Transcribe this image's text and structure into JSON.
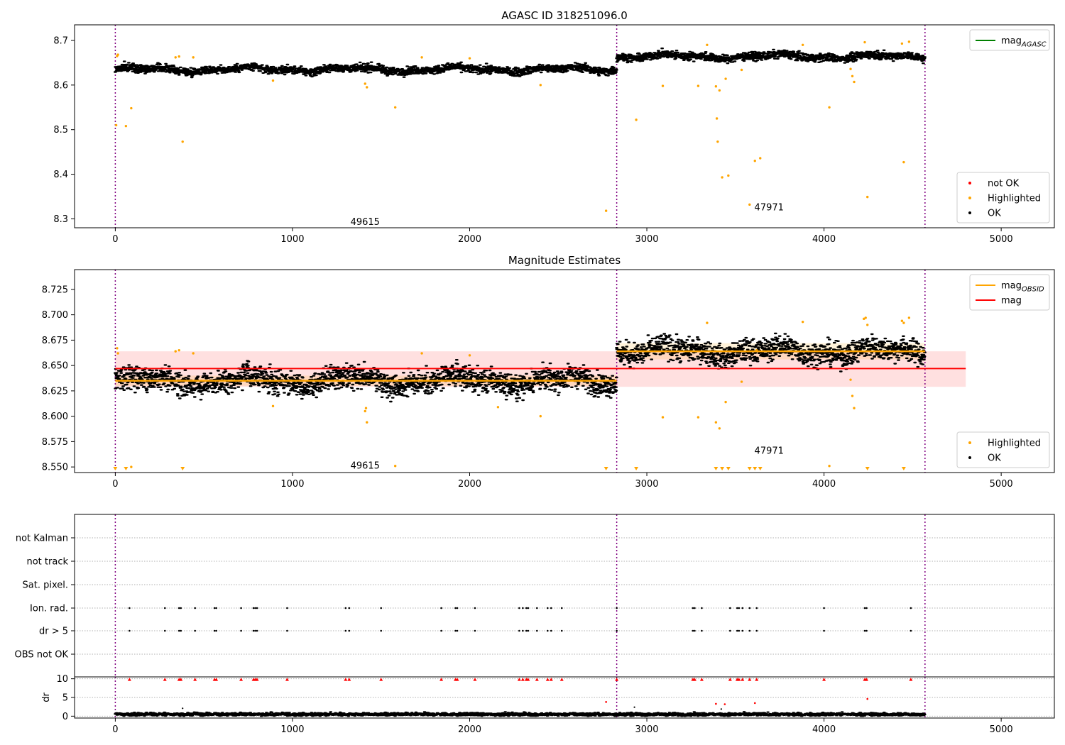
{
  "chart_data": [
    {
      "type": "scatter",
      "title": "AGASC ID 318251096.0",
      "xlim": [
        -230,
        5300
      ],
      "ylim": [
        8.28,
        8.735
      ],
      "xticks": [
        0,
        1000,
        2000,
        3000,
        4000,
        5000
      ],
      "yticks": [
        8.3,
        8.4,
        8.5,
        8.6,
        8.7
      ],
      "ytick_decimals": 1,
      "obs_boundaries": [
        0,
        2830,
        4570
      ],
      "obs_labels": [
        {
          "text": "49615",
          "x": 1410,
          "y": 8.293
        },
        {
          "text": "47971",
          "x": 3690,
          "y": 8.325
        }
      ],
      "ok_segments": [
        {
          "x0": 0,
          "x1": 2830,
          "base": 8.635,
          "amp": 0.01
        },
        {
          "x0": 2830,
          "x1": 4570,
          "base": 8.664,
          "amp": 0.01
        }
      ],
      "lines": [],
      "highlighted_points": [
        [
          5,
          8.51
        ],
        [
          10,
          8.665
        ],
        [
          15,
          8.668
        ],
        [
          60,
          8.508
        ],
        [
          90,
          8.548
        ],
        [
          340,
          8.662
        ],
        [
          360,
          8.664
        ],
        [
          380,
          8.473
        ],
        [
          440,
          8.662
        ],
        [
          890,
          8.61
        ],
        [
          1410,
          8.603
        ],
        [
          1420,
          8.595
        ],
        [
          1580,
          8.55
        ],
        [
          1730,
          8.662
        ],
        [
          2000,
          8.66
        ],
        [
          2400,
          8.6
        ],
        [
          2770,
          8.318
        ],
        [
          2940,
          8.522
        ],
        [
          3090,
          8.598
        ],
        [
          3290,
          8.598
        ],
        [
          3340,
          8.69
        ],
        [
          3390,
          8.597
        ],
        [
          3395,
          8.525
        ],
        [
          3400,
          8.473
        ],
        [
          3410,
          8.588
        ],
        [
          3425,
          8.393
        ],
        [
          3445,
          8.614
        ],
        [
          3460,
          8.397
        ],
        [
          3535,
          8.634
        ],
        [
          3580,
          8.332
        ],
        [
          3610,
          8.43
        ],
        [
          3640,
          8.436
        ],
        [
          3880,
          8.69
        ],
        [
          4030,
          8.55
        ],
        [
          4150,
          8.636
        ],
        [
          4160,
          8.62
        ],
        [
          4170,
          8.607
        ],
        [
          4230,
          8.696
        ],
        [
          4245,
          8.349
        ],
        [
          4440,
          8.693
        ],
        [
          4450,
          8.427
        ],
        [
          4480,
          8.697
        ]
      ],
      "legends": [
        {
          "placement": "top-right",
          "entries": [
            {
              "label": "mag",
              "sub": "AGASC",
              "marker": "line",
              "color": "#008000"
            }
          ]
        },
        {
          "placement": "bottom-right",
          "entries": [
            {
              "label": "not OK",
              "marker": "dot",
              "color": "#ff0000"
            },
            {
              "label": "Highlighted",
              "marker": "dot",
              "color": "#ffa500"
            },
            {
              "label": "OK",
              "marker": "dot",
              "color": "#000000"
            }
          ]
        }
      ]
    },
    {
      "type": "scatter",
      "title": "Magnitude Estimates",
      "xlim": [
        -230,
        5300
      ],
      "ylim": [
        8.5445,
        8.7445
      ],
      "xticks": [
        0,
        1000,
        2000,
        3000,
        4000,
        5000
      ],
      "yticks": [
        8.55,
        8.575,
        8.6,
        8.625,
        8.65,
        8.675,
        8.7,
        8.725
      ],
      "ytick_decimals": 3,
      "obs_boundaries": [
        0,
        2830,
        4570
      ],
      "obs_labels": [
        {
          "text": "49615",
          "x": 1410,
          "y": 8.551
        },
        {
          "text": "47971",
          "x": 3690,
          "y": 8.566
        }
      ],
      "ok_segments": [
        {
          "x0": 0,
          "x1": 2830,
          "base": 8.635,
          "amp": 0.013
        },
        {
          "x0": 2830,
          "x1": 4570,
          "base": 8.664,
          "amp": 0.013
        }
      ],
      "bands": [
        {
          "x0": 0,
          "x1": 4800,
          "y0": 8.629,
          "y1": 8.664,
          "color": "#ff0000",
          "opacity": 0.12
        },
        {
          "x0": 0,
          "x1": 2830,
          "y0": 8.63,
          "y1": 8.64,
          "color": "#ffa500",
          "opacity": 0.15
        },
        {
          "x0": 2830,
          "x1": 4570,
          "y0": 8.656,
          "y1": 8.672,
          "color": "#ffa500",
          "opacity": 0.15
        }
      ],
      "lines": [
        {
          "x0": 0,
          "x1": 2830,
          "y": 8.635,
          "color": "#ffa500",
          "width": 2.5
        },
        {
          "x0": 2830,
          "x1": 4570,
          "y": 8.664,
          "color": "#ffa500",
          "width": 2.5
        },
        {
          "x0": 0,
          "x1": 4800,
          "y": 8.647,
          "color": "#ff0000",
          "width": 1.8
        }
      ],
      "highlighted_points": [
        [
          10,
          8.667
        ],
        [
          15,
          8.662
        ],
        [
          90,
          8.55
        ],
        [
          340,
          8.664
        ],
        [
          360,
          8.665
        ],
        [
          440,
          8.662
        ],
        [
          890,
          8.61
        ],
        [
          1410,
          8.605
        ],
        [
          1415,
          8.608
        ],
        [
          1420,
          8.594
        ],
        [
          1580,
          8.551
        ],
        [
          1730,
          8.662
        ],
        [
          2000,
          8.66
        ],
        [
          2160,
          8.609
        ],
        [
          2400,
          8.6
        ],
        [
          3090,
          8.599
        ],
        [
          3290,
          8.599
        ],
        [
          3340,
          8.692
        ],
        [
          3390,
          8.594
        ],
        [
          3410,
          8.588
        ],
        [
          3445,
          8.614
        ],
        [
          3535,
          8.634
        ],
        [
          3620,
          8.665
        ],
        [
          3880,
          8.693
        ],
        [
          4030,
          8.551
        ],
        [
          4150,
          8.636
        ],
        [
          4160,
          8.62
        ],
        [
          4170,
          8.608
        ],
        [
          4225,
          8.696
        ],
        [
          4235,
          8.697
        ],
        [
          4245,
          8.69
        ],
        [
          4440,
          8.694
        ],
        [
          4450,
          8.692
        ],
        [
          4480,
          8.697
        ]
      ],
      "clipped_markers_x": [
        0,
        60,
        380,
        2770,
        2940,
        3390,
        3425,
        3460,
        3580,
        3610,
        3640,
        4245,
        4450
      ],
      "legends": [
        {
          "placement": "top-right",
          "entries": [
            {
              "label": "mag",
              "sub": "OBSID",
              "marker": "line",
              "color": "#ffa500"
            },
            {
              "label": "mag",
              "marker": "line",
              "color": "#ff0000"
            }
          ]
        },
        {
          "placement": "bottom-right",
          "entries": [
            {
              "label": "Highlighted",
              "marker": "dot",
              "color": "#ffa500"
            },
            {
              "label": "OK",
              "marker": "dot",
              "color": "#000000"
            }
          ]
        }
      ]
    },
    {
      "type": "scatter",
      "xlim": [
        -230,
        5300
      ],
      "obs_boundaries": [
        0,
        2830,
        4570
      ],
      "flag_rows": [
        "not Kalman",
        "not track",
        "Sat. pixel.",
        "Ion. rad.",
        "dr > 5",
        "OBS not OK"
      ],
      "flag_events_x": [
        80,
        280,
        360,
        370,
        450,
        560,
        570,
        710,
        780,
        790,
        800,
        970,
        1300,
        1320,
        1500,
        1840,
        1920,
        1930,
        2030,
        2280,
        2300,
        2320,
        2330,
        2380,
        2440,
        2460,
        2520,
        2830,
        3260,
        3270,
        3310,
        3470,
        3510,
        3520,
        3540,
        3580,
        3620,
        4000,
        4230,
        4240,
        4490
      ],
      "flag_event_rows": [
        "Ion. rad.",
        "dr > 5"
      ]
    },
    {
      "type": "scatter",
      "ylabel": "dr",
      "xlim": [
        -230,
        5300
      ],
      "ylim": [
        -0.5,
        10.5
      ],
      "xticks": [
        0,
        1000,
        2000,
        3000,
        4000,
        5000
      ],
      "yticks": [
        0,
        5,
        10
      ],
      "ytick_decimals": 0,
      "obs_boundaries": [
        0,
        2830,
        4570
      ],
      "dr_base": {
        "x0": 0,
        "x1": 4570,
        "mean": 0.5
      },
      "outliers_red": [
        [
          2770,
          3.8
        ],
        [
          3390,
          3.3
        ],
        [
          3440,
          3.2
        ],
        [
          3610,
          3.5
        ],
        [
          4245,
          4.6
        ]
      ],
      "outliers_black": [
        [
          380,
          2.1
        ],
        [
          2930,
          2.4
        ],
        [
          3420,
          1.9
        ]
      ],
      "clipped_red_x": [
        80,
        280,
        360,
        370,
        450,
        560,
        570,
        710,
        780,
        790,
        800,
        970,
        1300,
        1320,
        1500,
        1840,
        1920,
        1930,
        2030,
        2280,
        2300,
        2320,
        2330,
        2380,
        2440,
        2460,
        2520,
        2830,
        3260,
        3270,
        3310,
        3470,
        3510,
        3520,
        3540,
        3580,
        3620,
        4000,
        4230,
        4240,
        4490
      ]
    }
  ]
}
